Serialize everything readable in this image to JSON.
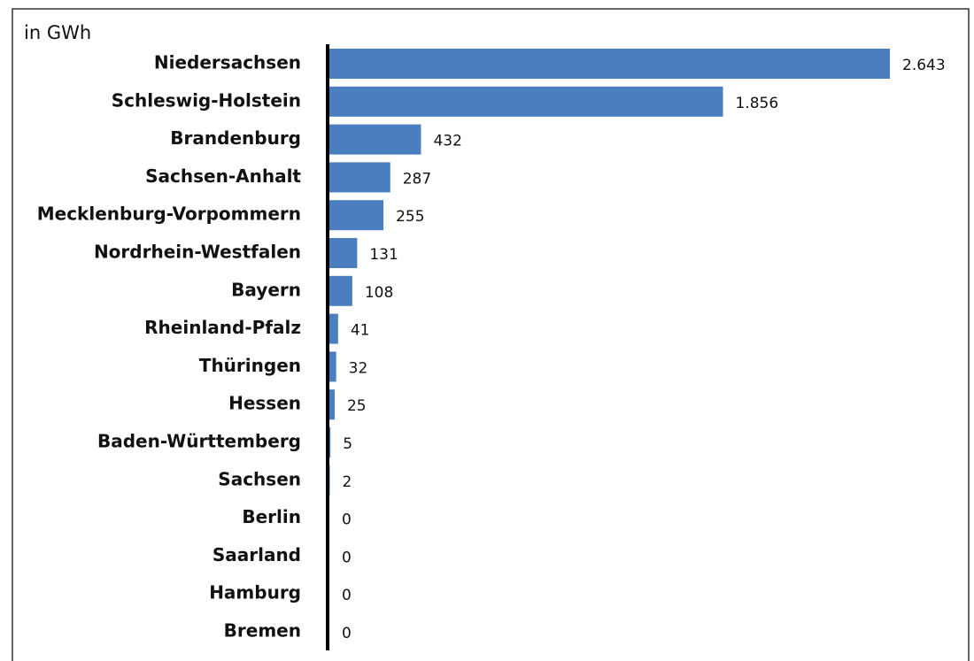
{
  "chart_data": {
    "type": "bar",
    "orientation": "horizontal",
    "title": "in GWh",
    "categories": [
      "Niedersachsen",
      "Schleswig-Holstein",
      "Brandenburg",
      "Sachsen-Anhalt",
      "Mecklenburg-Vorpommern",
      "Nordrhein-Westfalen",
      "Bayern",
      "Rheinland-Pfalz",
      "Thüringen",
      "Hessen",
      "Baden-Württemberg",
      "Sachsen",
      "Berlin",
      "Saarland",
      "Hamburg",
      "Bremen"
    ],
    "values": [
      2643,
      1856,
      432,
      287,
      255,
      131,
      108,
      41,
      32,
      25,
      5,
      2,
      0,
      0,
      0,
      0
    ],
    "value_labels": [
      "2.643",
      "1.856",
      "432",
      "287",
      "255",
      "131",
      "108",
      "41",
      "32",
      "25",
      "5",
      "2",
      "0",
      "0",
      "0",
      "0"
    ],
    "color": "#4a7ebf"
  }
}
